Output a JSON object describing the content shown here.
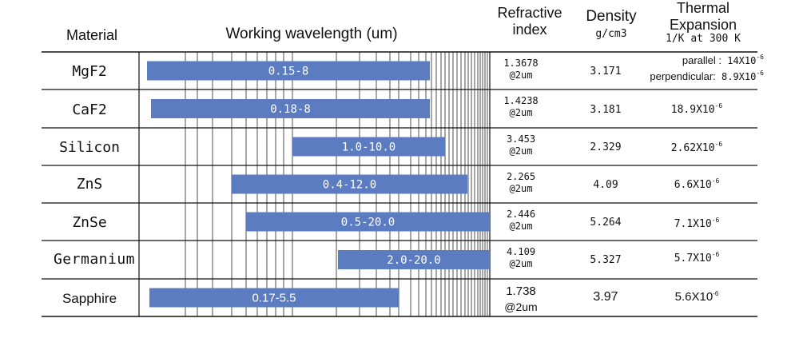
{
  "headers": {
    "material": "Material",
    "wavelength": "Working wavelength (um)",
    "refractive_line1": "Refractive",
    "refractive_line2": "index",
    "density": "Density",
    "density_unit": "g/cm3",
    "thermal_line1": "Thermal",
    "thermal_line2": "Expansion",
    "thermal_unit": "1/K at 300 K"
  },
  "chart_data": {
    "type": "bar",
    "orientation": "horizontal",
    "xlabel": "Working wavelength (um)",
    "x_scale": "log",
    "xlim": [
      0.13,
      20
    ],
    "bar_color": "#5b7cc0",
    "categories": [
      "MgF2",
      "CaF2",
      "Silicon",
      "ZnS",
      "ZnSe",
      "Germanium",
      "Sapphire"
    ],
    "ranges": [
      {
        "material": "MgF2",
        "start": 0.15,
        "end": 8,
        "label": "0.15-8"
      },
      {
        "material": "CaF2",
        "start": 0.18,
        "end": 8,
        "label": "0.18-8"
      },
      {
        "material": "Silicon",
        "start": 1.0,
        "end": 10.0,
        "label": "1.0-10.0"
      },
      {
        "material": "ZnS",
        "start": 0.4,
        "end": 12.0,
        "label": "0.4-12.0"
      },
      {
        "material": "ZnSe",
        "start": 0.5,
        "end": 20.0,
        "label": "0.5-20.0"
      },
      {
        "material": "Germanium",
        "start": 2.0,
        "end": 20.0,
        "label": "2.0-20.0"
      },
      {
        "material": "Sapphire",
        "start": 0.17,
        "end": 5.5,
        "label": "0.17-5.5"
      }
    ]
  },
  "rows": [
    {
      "material": "MgF2",
      "refractive_value": "1.3678",
      "refractive_note": "@2um",
      "density": "3.171",
      "thermal_parallel_label": "parallel :",
      "thermal_parallel_value": "14X10",
      "thermal_perp_label": "perpendicular:",
      "thermal_perp_value": "8.9X10",
      "thermal_exp": "-6"
    },
    {
      "material": "CaF2",
      "refractive_value": "1.4238",
      "refractive_note": "@2um",
      "density": "3.181",
      "thermal_value": "18.9X10",
      "thermal_exp": "-6"
    },
    {
      "material": "Silicon",
      "refractive_value": "3.453",
      "refractive_note": "@2um",
      "density": "2.329",
      "thermal_value": "2.62X10",
      "thermal_exp": "-6"
    },
    {
      "material": "ZnS",
      "refractive_value": "2.265",
      "refractive_note": "@2um",
      "density": "4.09",
      "thermal_value": "6.6X10",
      "thermal_exp": "-6"
    },
    {
      "material": "ZnSe",
      "refractive_value": "2.446",
      "refractive_note": "@2um",
      "density": "5.264",
      "thermal_value": "7.1X10",
      "thermal_exp": "-6"
    },
    {
      "material": "Germanium",
      "refractive_value": "4.109",
      "refractive_note": "@2um",
      "density": "5.327",
      "thermal_value": "5.7X10",
      "thermal_exp": "-6"
    },
    {
      "material": "Sapphire",
      "refractive_value": "1.738",
      "refractive_note": "@2um",
      "density": "3.97",
      "thermal_value": "5.6X10",
      "thermal_exp": "-6"
    }
  ]
}
